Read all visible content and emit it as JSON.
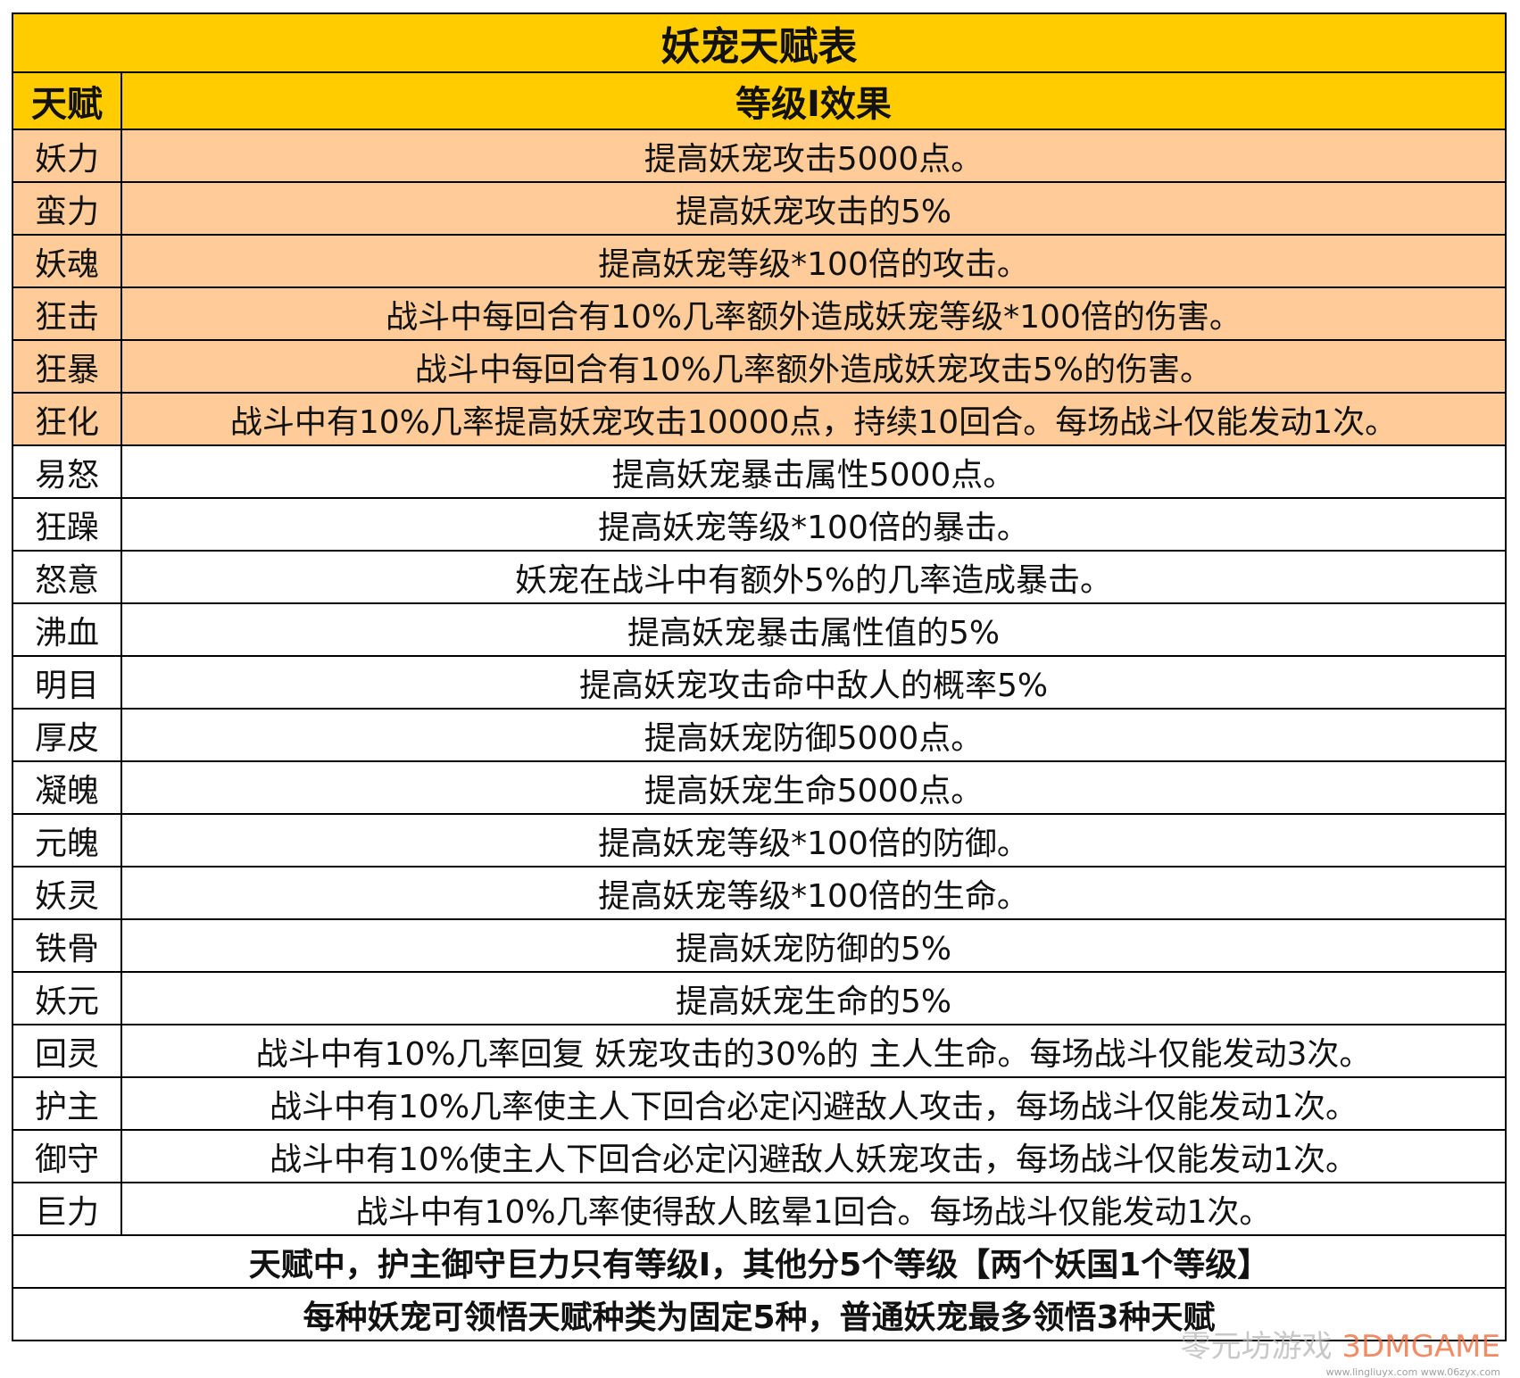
{
  "title": "妖宠天赋表",
  "headers": {
    "talent": "天赋",
    "effect": "等级I效果"
  },
  "rows": [
    {
      "name": "妖力",
      "effect": "提高妖宠攻击5000点。",
      "highlight": true
    },
    {
      "name": "蛮力",
      "effect": "提高妖宠攻击的5%",
      "highlight": true
    },
    {
      "name": "妖魂",
      "effect": "提高妖宠等级*100倍的攻击。",
      "highlight": true
    },
    {
      "name": "狂击",
      "effect": "战斗中每回合有10%几率额外造成妖宠等级*100倍的伤害。",
      "highlight": true
    },
    {
      "name": "狂暴",
      "effect": "战斗中每回合有10%几率额外造成妖宠攻击5%的伤害。",
      "highlight": true
    },
    {
      "name": "狂化",
      "effect": "战斗中有10%几率提高妖宠攻击10000点，持续10回合。每场战斗仅能发动1次。",
      "highlight": true
    },
    {
      "name": "易怒",
      "effect": "提高妖宠暴击属性5000点。",
      "highlight": false
    },
    {
      "name": "狂躁",
      "effect": "提高妖宠等级*100倍的暴击。",
      "highlight": false
    },
    {
      "name": "怒意",
      "effect": "妖宠在战斗中有额外5%的几率造成暴击。",
      "highlight": false
    },
    {
      "name": "沸血",
      "effect": "提高妖宠暴击属性值的5%",
      "highlight": false
    },
    {
      "name": "明目",
      "effect": "提高妖宠攻击命中敌人的概率5%",
      "highlight": false
    },
    {
      "name": "厚皮",
      "effect": "提高妖宠防御5000点。",
      "highlight": false
    },
    {
      "name": "凝魄",
      "effect": "提高妖宠生命5000点。",
      "highlight": false
    },
    {
      "name": "元魄",
      "effect": "提高妖宠等级*100倍的防御。",
      "highlight": false
    },
    {
      "name": "妖灵",
      "effect": "提高妖宠等级*100倍的生命。",
      "highlight": false
    },
    {
      "name": "铁骨",
      "effect": "提高妖宠防御的5%",
      "highlight": false
    },
    {
      "name": "妖元",
      "effect": "提高妖宠生命的5%",
      "highlight": false
    },
    {
      "name": "回灵",
      "effect": "战斗中有10%几率回复 妖宠攻击的30%的 主人生命。每场战斗仅能发动3次。",
      "highlight": false
    },
    {
      "name": "护主",
      "effect": "战斗中有10%几率使主人下回合必定闪避敌人攻击，每场战斗仅能发动1次。",
      "highlight": false
    },
    {
      "name": "御守",
      "effect": "战斗中有10%使主人下回合必定闪避敌人妖宠攻击，每场战斗仅能发动1次。",
      "highlight": false
    },
    {
      "name": "巨力",
      "effect": "战斗中有10%几率使得敌人眩晕1回合。每场战斗仅能发动1次。",
      "highlight": false
    }
  ],
  "notes": [
    "天赋中，护主御守巨力只有等级I，其他分5个等级【两个妖国1个等级】",
    "每种妖宠可领悟天赋种类为固定5种，普通妖宠最多领悟3种天赋"
  ],
  "watermark": {
    "text": "零元坊游戏",
    "brand": "3DMGAME",
    "urls": "www.lingliuyx.com  www.06zyx.com"
  },
  "colors": {
    "header": "#ffcc00",
    "highlight_row": "#ffcc99",
    "normal_row": "#ffffff"
  }
}
